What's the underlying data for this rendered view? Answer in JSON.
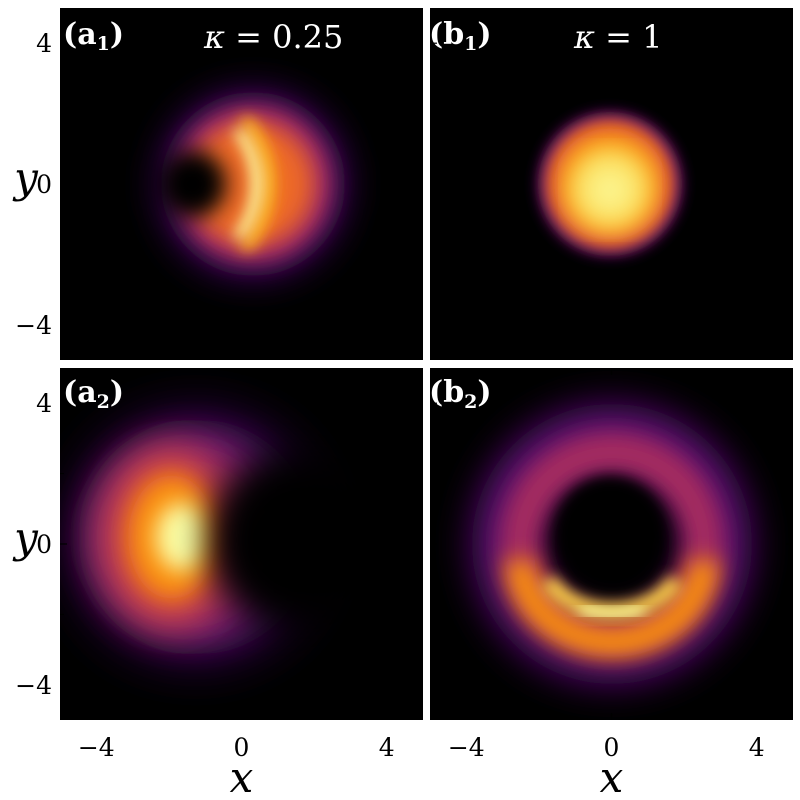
{
  "figure": {
    "colormap": "inferno",
    "background": "#000000",
    "frame_color": "#ffffff"
  },
  "chart_data": [
    {
      "type": "heatmap",
      "panel": "a1",
      "tag_main": "(a",
      "tag_sub": "1",
      "tag_close": ")",
      "annotation_symbol": "κ",
      "annotation_value": " = 0.25",
      "xlabel": "",
      "ylabel": "y",
      "xlim": [
        -5,
        5
      ],
      "ylim": [
        -5,
        5
      ],
      "xticks": [
        -4,
        0,
        4
      ],
      "yticks": [
        -4,
        0,
        4
      ],
      "shape": "crescent opening left, centered near (0.4, 0); bright ridge at x≈-0.3, |y|≤1.2; outer radius ≈2.7"
    },
    {
      "type": "heatmap",
      "panel": "b1",
      "tag_main": "(b",
      "tag_sub": "1",
      "tag_close": ")",
      "annotation_symbol": "κ",
      "annotation_value": " = 1",
      "xlabel": "",
      "ylabel": "",
      "xlim": [
        -5,
        5
      ],
      "ylim": [
        -5,
        5
      ],
      "xticks": [
        -4,
        0,
        4
      ],
      "yticks": [
        -4,
        0,
        4
      ],
      "shape": "round spot centered at (0, 0), radius ≈2, brightest at the center"
    },
    {
      "type": "heatmap",
      "panel": "a2",
      "tag_main": "(a",
      "tag_sub": "2",
      "tag_close": ")",
      "annotation_symbol": "",
      "annotation_value": "",
      "xlabel": "x",
      "ylabel": "y",
      "xlim": [
        -5,
        5
      ],
      "ylim": [
        -5,
        5
      ],
      "xticks": [
        -4,
        0,
        4
      ],
      "yticks": [
        -4,
        0,
        4
      ],
      "shape": "crescent opening right, centered near (-1.5, 0); brightest at (-1.5, 0); outer radius ≈4"
    },
    {
      "type": "heatmap",
      "panel": "b2",
      "tag_main": "(b",
      "tag_sub": "2",
      "tag_close": ")",
      "annotation_symbol": "",
      "annotation_value": "",
      "xlabel": "x",
      "ylabel": "",
      "xlim": [
        -5,
        5
      ],
      "ylim": [
        -5,
        5
      ],
      "xticks": [
        -4,
        0,
        4
      ],
      "yticks": [
        -4,
        0,
        4
      ],
      "shape": "ring centered at (0, 0), inner dark radius ≈1.7, outer radius ≈3.5, brightest along the bottom arc near y≈-1.8"
    }
  ]
}
